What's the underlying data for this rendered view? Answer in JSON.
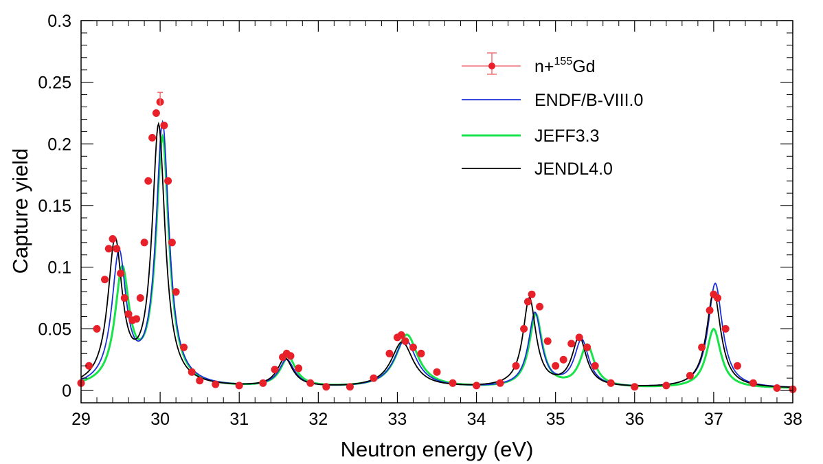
{
  "chart_data": {
    "type": "line",
    "title": "",
    "xlabel": "Neutron energy (eV)",
    "ylabel": "Capture yield",
    "xlim": [
      29,
      38
    ],
    "ylim": [
      -0.01,
      0.3
    ],
    "x_ticks": [
      "29",
      "30",
      "31",
      "32",
      "33",
      "34",
      "35",
      "36",
      "37",
      "38"
    ],
    "y_ticks": [
      "0",
      "0.05",
      "0.1",
      "0.15",
      "0.2",
      "0.25",
      "0.3"
    ],
    "legend_position": "top-right",
    "legend": {
      "data_label_prefix": "n+",
      "data_label_superscript": "155",
      "data_label_suffix": "Gd",
      "endf": "ENDF/B-VIII.0",
      "jeff": "JEFF3.3",
      "jendl": "JENDL4.0"
    },
    "series": [
      {
        "name": "n+155Gd",
        "kind": "data",
        "color": "#e8202a",
        "x": [
          29.0,
          29.1,
          29.2,
          29.3,
          29.35,
          29.4,
          29.45,
          29.5,
          29.55,
          29.6,
          29.65,
          29.7,
          29.75,
          29.8,
          29.85,
          29.9,
          29.95,
          30.0,
          30.05,
          30.1,
          30.15,
          30.2,
          30.3,
          30.4,
          30.5,
          30.7,
          31.0,
          31.3,
          31.45,
          31.55,
          31.6,
          31.65,
          31.75,
          31.9,
          32.1,
          32.4,
          32.7,
          32.9,
          33.0,
          33.05,
          33.1,
          33.2,
          33.3,
          33.5,
          33.7,
          34.0,
          34.3,
          34.5,
          34.6,
          34.65,
          34.7,
          34.8,
          34.9,
          35.0,
          35.1,
          35.2,
          35.3,
          35.4,
          35.5,
          35.7,
          36.0,
          36.4,
          36.7,
          36.85,
          36.95,
          37.0,
          37.05,
          37.15,
          37.3,
          37.5,
          37.8,
          38.0
        ],
        "y": [
          0.006,
          0.02,
          0.05,
          0.09,
          0.115,
          0.123,
          0.115,
          0.095,
          0.075,
          0.062,
          0.057,
          0.058,
          0.075,
          0.12,
          0.17,
          0.205,
          0.225,
          0.234,
          0.215,
          0.17,
          0.12,
          0.08,
          0.035,
          0.015,
          0.008,
          0.005,
          0.004,
          0.006,
          0.017,
          0.027,
          0.03,
          0.028,
          0.018,
          0.006,
          0.003,
          0.003,
          0.01,
          0.03,
          0.043,
          0.045,
          0.04,
          0.035,
          0.03,
          0.015,
          0.006,
          0.004,
          0.006,
          0.02,
          0.05,
          0.072,
          0.078,
          0.068,
          0.04,
          0.02,
          0.025,
          0.038,
          0.043,
          0.035,
          0.02,
          0.006,
          0.003,
          0.004,
          0.012,
          0.035,
          0.065,
          0.078,
          0.075,
          0.05,
          0.02,
          0.006,
          0.002,
          0.001
        ]
      },
      {
        "name": "ENDF/B-VIII.0",
        "kind": "model",
        "color": "#1c2fd6",
        "peaks": [
          {
            "center": 29.48,
            "height": 0.106,
            "width": 0.11
          },
          {
            "center": 30.03,
            "height": 0.212,
            "width": 0.1
          },
          {
            "center": 31.6,
            "height": 0.022,
            "width": 0.12
          },
          {
            "center": 33.1,
            "height": 0.039,
            "width": 0.17
          },
          {
            "center": 34.74,
            "height": 0.06,
            "width": 0.1
          },
          {
            "center": 35.33,
            "height": 0.038,
            "width": 0.11
          },
          {
            "center": 37.02,
            "height": 0.085,
            "width": 0.11
          }
        ]
      },
      {
        "name": "JEFF3.3",
        "kind": "model",
        "color": "#19e34a",
        "peaks": [
          {
            "center": 29.52,
            "height": 0.092,
            "width": 0.11
          },
          {
            "center": 30.03,
            "height": 0.2,
            "width": 0.1
          },
          {
            "center": 31.62,
            "height": 0.024,
            "width": 0.12
          },
          {
            "center": 33.12,
            "height": 0.043,
            "width": 0.17
          },
          {
            "center": 34.75,
            "height": 0.059,
            "width": 0.1
          },
          {
            "center": 35.4,
            "height": 0.034,
            "width": 0.11
          },
          {
            "center": 37.0,
            "height": 0.048,
            "width": 0.11
          }
        ]
      },
      {
        "name": "JENDL4.0",
        "kind": "model",
        "color": "#000000",
        "peaks": [
          {
            "center": 29.43,
            "height": 0.116,
            "width": 0.11
          },
          {
            "center": 29.98,
            "height": 0.21,
            "width": 0.1
          },
          {
            "center": 31.58,
            "height": 0.023,
            "width": 0.12
          },
          {
            "center": 33.06,
            "height": 0.037,
            "width": 0.17
          },
          {
            "center": 34.67,
            "height": 0.072,
            "width": 0.1
          },
          {
            "center": 35.3,
            "height": 0.04,
            "width": 0.11
          },
          {
            "center": 37.0,
            "height": 0.078,
            "width": 0.11
          }
        ]
      }
    ]
  }
}
